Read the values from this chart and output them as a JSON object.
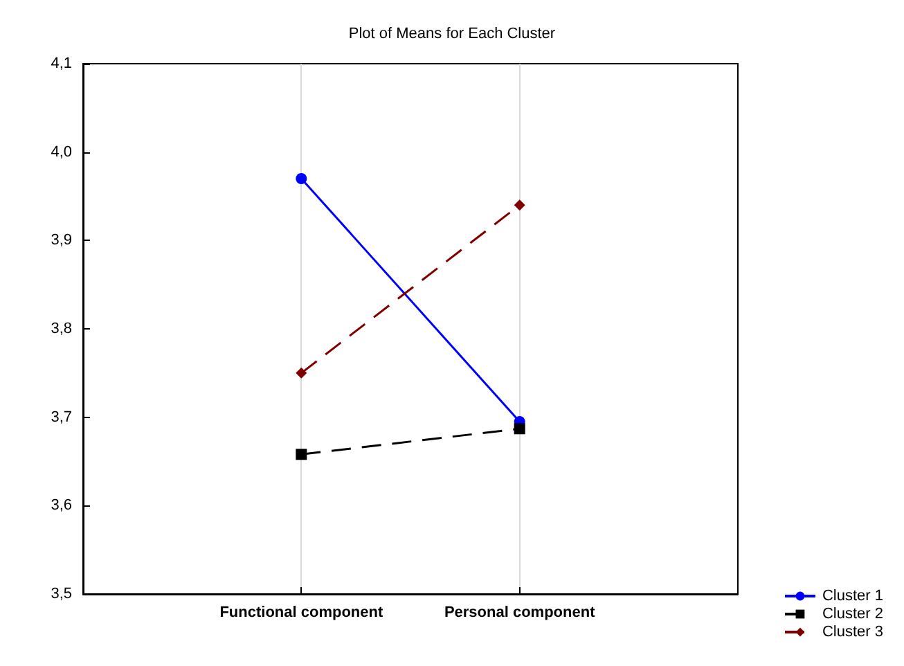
{
  "chart_data": {
    "type": "line",
    "title": "Plot of Means for Each Cluster",
    "categories": [
      "Functional component",
      "Personal component"
    ],
    "series": [
      {
        "name": "Cluster 1",
        "color": "#0000ff",
        "values": [
          3.97,
          3.695
        ],
        "marker": "circle",
        "line_style": "solid"
      },
      {
        "name": "Cluster 2",
        "color": "#000000",
        "values": [
          3.658,
          3.687
        ],
        "marker": "square",
        "line_style": "dashed"
      },
      {
        "name": "Cluster 3",
        "color": "#800000",
        "values": [
          3.75,
          3.94
        ],
        "marker": "diamond",
        "line_style": "dashed"
      }
    ],
    "ylim": [
      3.5,
      4.1
    ],
    "yticks": [
      {
        "value": 3.5,
        "label": "3,5"
      },
      {
        "value": 3.6,
        "label": "3,6"
      },
      {
        "value": 3.7,
        "label": "3,7"
      },
      {
        "value": 3.8,
        "label": "3,8"
      },
      {
        "value": 3.9,
        "label": "3,9"
      },
      {
        "value": 4.0,
        "label": "4,0"
      },
      {
        "value": 4.1,
        "label": "4,1"
      }
    ],
    "grid": "x",
    "legend": "bottom right"
  }
}
